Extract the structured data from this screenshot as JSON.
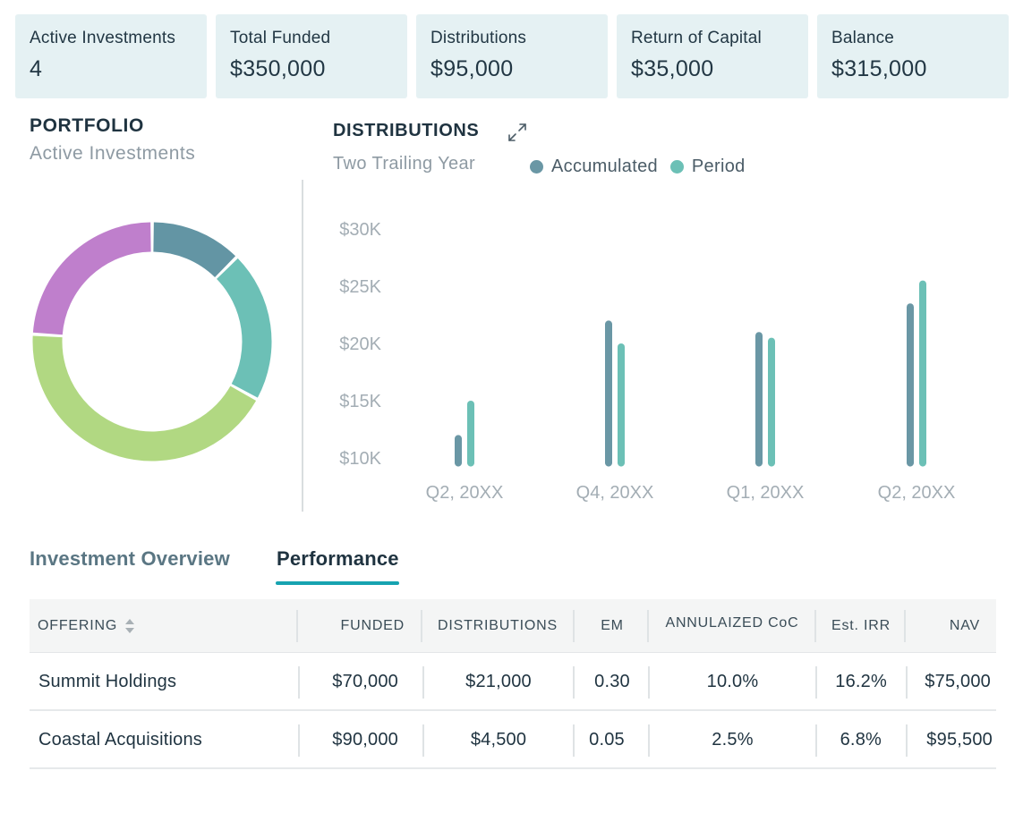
{
  "stats": [
    {
      "label": "Active Investments",
      "value": "4"
    },
    {
      "label": "Total Funded",
      "value": "$350,000"
    },
    {
      "label": "Distributions",
      "value": "$95,000"
    },
    {
      "label": "Return of Capital",
      "value": "$35,000"
    },
    {
      "label": "Balance",
      "value": "$315,000"
    }
  ],
  "portfolio": {
    "title": "PORTFOLIO",
    "subtitle": "Active Investments",
    "segments": [
      {
        "share": 0.125,
        "color": "#6395a4"
      },
      {
        "share": 0.205,
        "color": "#6cc0b6"
      },
      {
        "share": 0.43,
        "color": "#b1d882"
      },
      {
        "share": 0.24,
        "color": "#bf7fcc"
      }
    ]
  },
  "distributions": {
    "title": "DISTRIBUTIONS",
    "subtitle": "Two Trailing Year",
    "expand_icon": "expand-icon"
  },
  "colors": {
    "accumulated": "#6a97a5",
    "period": "#6cc0b6",
    "accent": "#16a3b0"
  },
  "chart_data": {
    "type": "bar",
    "title": "DISTRIBUTIONS",
    "subtitle": "Two Trailing Year",
    "categories": [
      "Q2, 20XX",
      "Q4, 20XX",
      "Q1, 20XX",
      "Q2, 20XX"
    ],
    "series": [
      {
        "name": "Accumulated",
        "values": [
          12000,
          22000,
          21000,
          23500
        ]
      },
      {
        "name": "Period",
        "values": [
          15000,
          20000,
          20500,
          25500
        ]
      }
    ],
    "ylim": [
      9000,
      30000
    ],
    "yticks": [
      10000,
      15000,
      20000,
      25000,
      30000
    ],
    "ytick_labels": [
      "$10K",
      "$15K",
      "$20K",
      "$25K",
      "$30K"
    ],
    "legend": "top",
    "grid": false
  },
  "tabs": {
    "overview": "Investment Overview",
    "performance": "Performance"
  },
  "table": {
    "headers": {
      "offering": "OFFERING",
      "funded": "FUNDED",
      "distributions": "DISTRIBUTIONS",
      "em": "EM",
      "coc": "ANNULAIZED CoC",
      "irr": "Est. IRR",
      "nav": "NAV"
    },
    "rows": [
      {
        "offering": "Summit Holdings",
        "funded": "$70,000",
        "distributions": "$21,000",
        "em": "0.30",
        "coc": "10.0%",
        "irr": "16.2%",
        "nav": "$75,000"
      },
      {
        "offering": "Coastal Acquisitions",
        "funded": "$90,000",
        "distributions": "$4,500",
        "em": "0.05",
        "coc": "2.5%",
        "irr": "6.8%",
        "nav": "$95,500"
      }
    ]
  }
}
